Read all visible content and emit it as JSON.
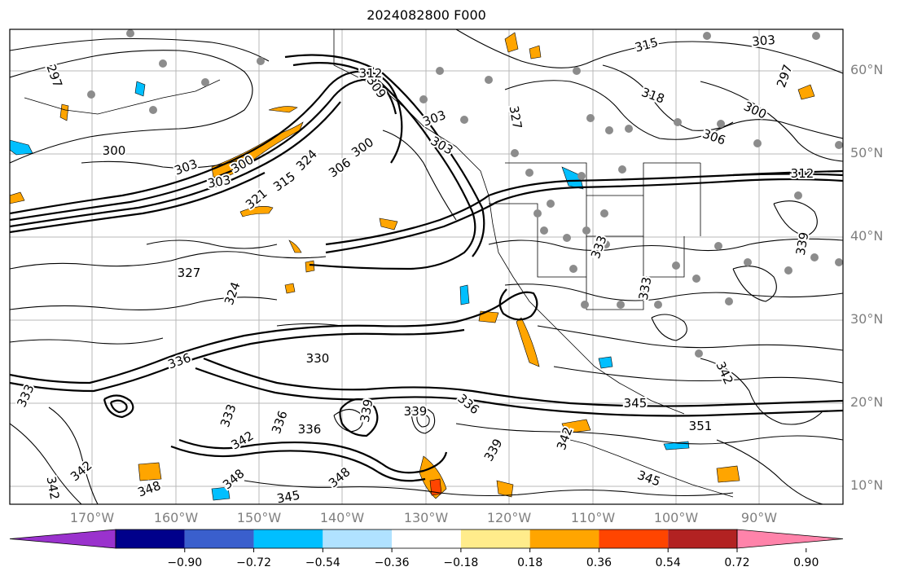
{
  "title": "2024082800 F000",
  "map": {
    "lat_labels": [
      "60°N",
      "50°N",
      "40°N",
      "30°N",
      "20°N",
      "10°N"
    ],
    "lon_labels": [
      "170°W",
      "160°W",
      "150°W",
      "140°W",
      "130°W",
      "120°W",
      "110°W",
      "100°W",
      "90°W"
    ],
    "contour_labels": [
      "297",
      "300",
      "303",
      "306",
      "309",
      "312",
      "315",
      "318",
      "321",
      "324",
      "327",
      "330",
      "333",
      "336",
      "339",
      "342",
      "345",
      "348",
      "351"
    ],
    "grid": true
  },
  "colorbar": {
    "tick_labels": [
      "−0.90",
      "−0.72",
      "−0.54",
      "−0.36",
      "−0.18",
      "0.18",
      "0.36",
      "0.54",
      "0.72",
      "0.90"
    ],
    "colors": [
      "#9a32cd",
      "#00008b",
      "#3a5fcd",
      "#00bfff",
      "#b0e2ff",
      "#ffffff",
      "#ffec8b",
      "#ffa500",
      "#ff4500",
      "#b22222",
      "#ff83aa"
    ],
    "extend": "both"
  }
}
